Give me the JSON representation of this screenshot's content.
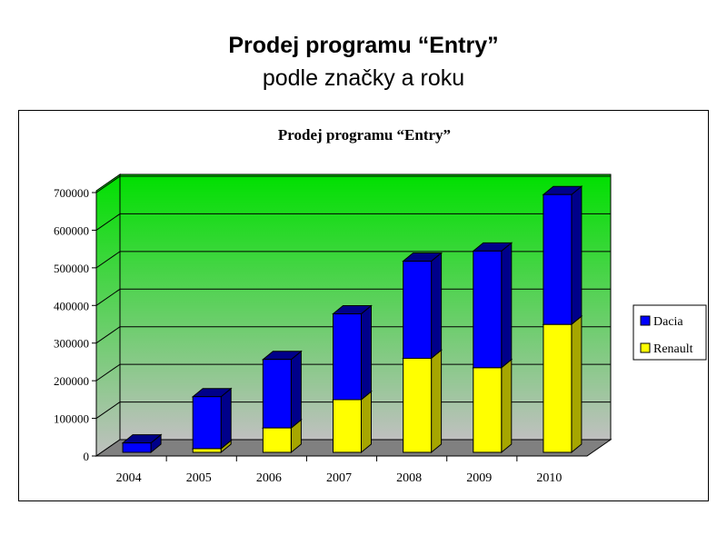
{
  "slide": {
    "title": "Prodej programu “Entry”",
    "subtitle": "podle značky a roku"
  },
  "chart_data": {
    "type": "bar",
    "stacked": true,
    "three_d": true,
    "title": "Prodej programu “Entry”",
    "categories": [
      "2004",
      "2005",
      "2006",
      "2007",
      "2008",
      "2009",
      "2010"
    ],
    "series": [
      {
        "name": "Renault",
        "color": "#ffff00",
        "side_color": "#a6a600",
        "values": [
          0,
          10000,
          65000,
          140000,
          250000,
          225000,
          340000
        ]
      },
      {
        "name": "Dacia",
        "color": "#0000ff",
        "side_color": "#00008a",
        "values": [
          25000,
          138000,
          182000,
          228000,
          258000,
          310000,
          345000
        ]
      }
    ],
    "ylim": [
      0,
      700000
    ],
    "yticks": [
      "0",
      "100000",
      "200000",
      "300000",
      "400000",
      "500000",
      "600000",
      "700000"
    ],
    "legend_order": [
      "Dacia",
      "Renault"
    ],
    "legend": "right",
    "grid": true,
    "wall_colors": {
      "top": "#00e000",
      "bottom": "#c0c0c0"
    },
    "floor_color": "#808080"
  }
}
